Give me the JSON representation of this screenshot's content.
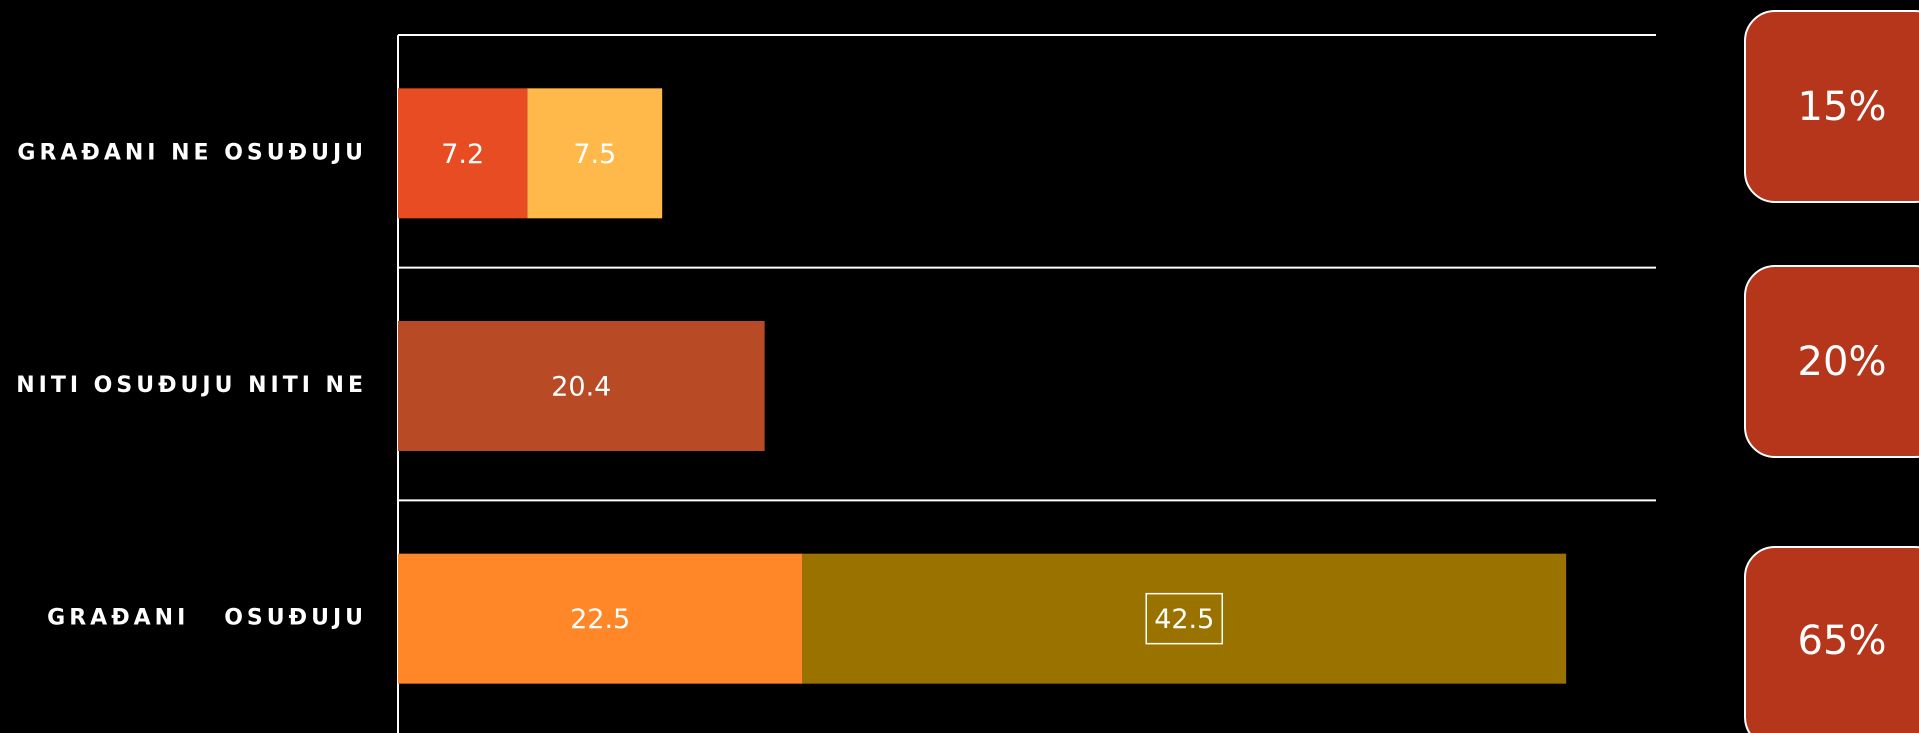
{
  "chart_data": {
    "type": "bar",
    "orientation": "horizontal",
    "stacked": true,
    "categories": [
      "GRAĐANI NE OSUĐUJU",
      "NITI OSUĐUJU NITI NE",
      "GRAĐANI   OSUĐUJU"
    ],
    "series": [
      {
        "color": "#e84c22",
        "values": [
          7.2,
          null,
          null
        ]
      },
      {
        "color": "#ffb84a",
        "values": [
          7.5,
          null,
          null
        ]
      },
      {
        "color": "#b94a26",
        "values": [
          null,
          20.4,
          null
        ]
      },
      {
        "color": "#ff8728",
        "values": [
          null,
          null,
          22.5
        ]
      },
      {
        "color": "#9a7200",
        "values": [
          null,
          null,
          42.5
        ]
      }
    ],
    "xlim": [
      0,
      70
    ],
    "side_values": [
      15,
      20,
      65
    ],
    "side_value_labels": [
      "15%",
      "20%",
      "65%"
    ],
    "side_color": "#b5361a"
  }
}
